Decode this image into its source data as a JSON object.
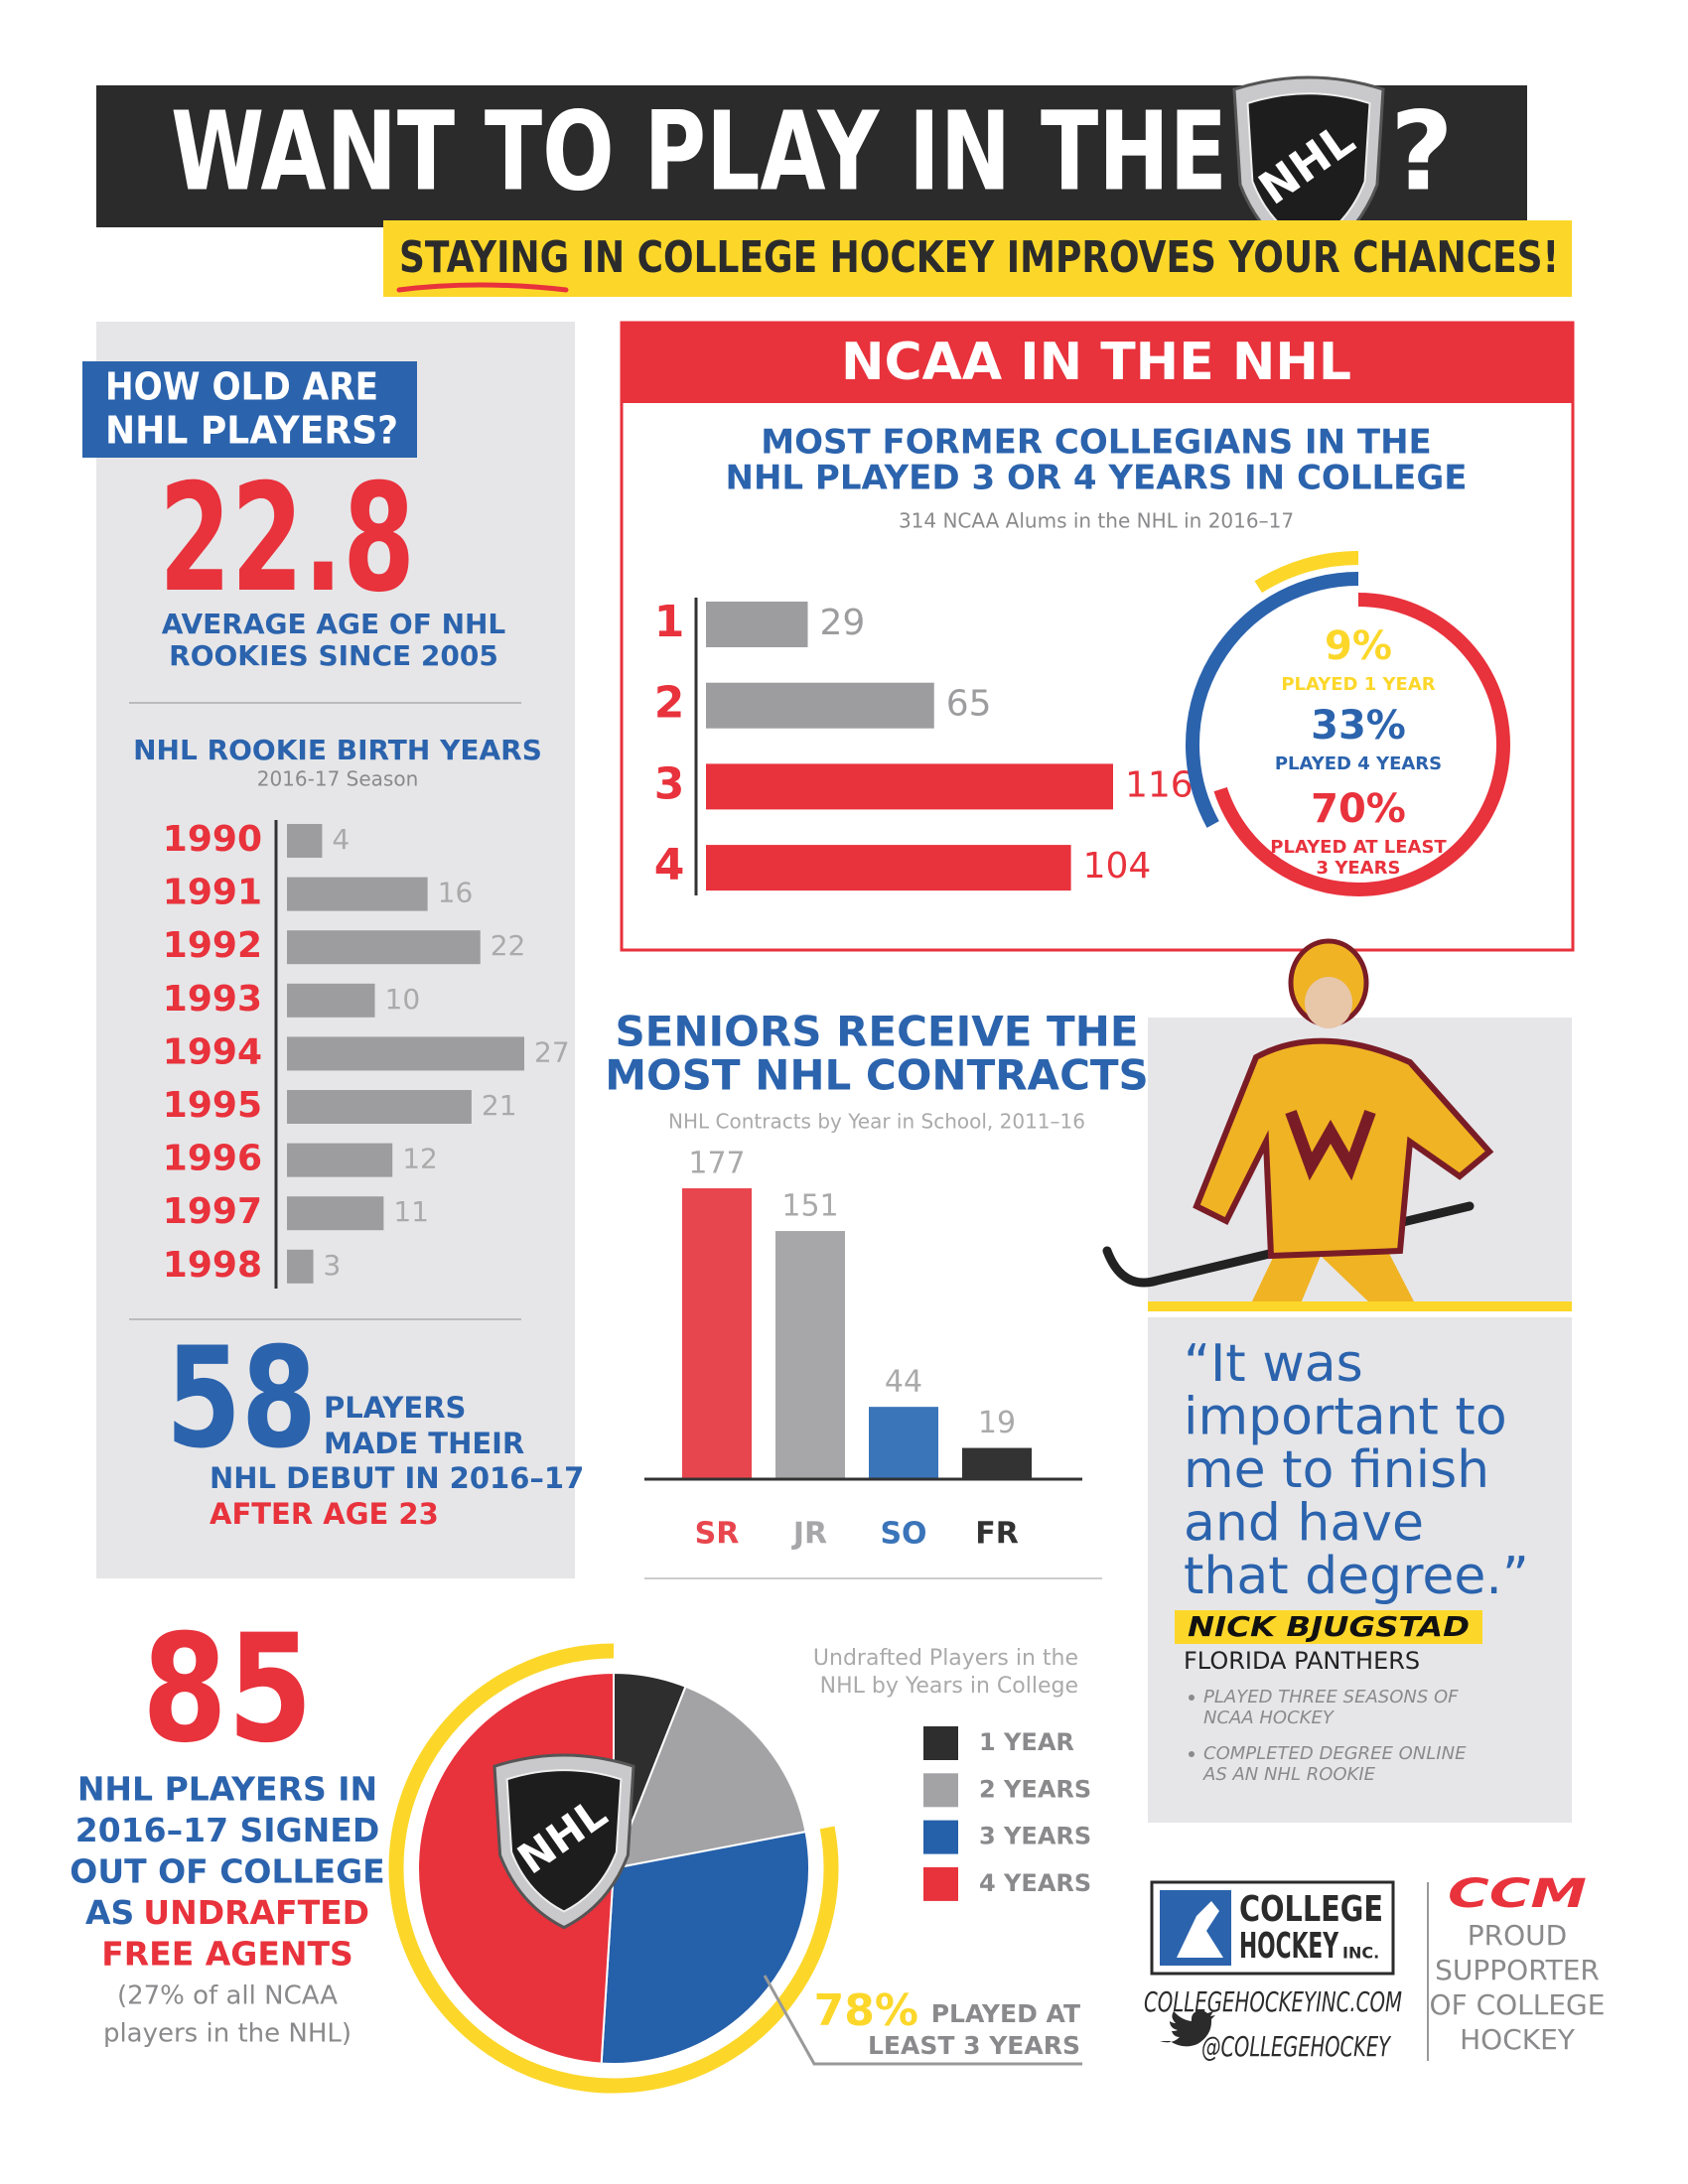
{
  "header": {
    "title": "WANT TO PLAY IN THE",
    "title_end": "?",
    "subtitle": "STAYING IN COLLEGE HOCKEY IMPROVES YOUR CHANCES!"
  },
  "nhl_logo": "NHL",
  "age": {
    "heading": [
      "HOW OLD ARE",
      "NHL PLAYERS?"
    ],
    "average": 22.8,
    "caption": [
      "AVERAGE AGE OF NHL",
      "ROOKIES SINCE 2005"
    ]
  },
  "debut": {
    "count": 58,
    "text": [
      "PLAYERS",
      "MADE THEIR",
      "NHL DEBUT IN 2016–17"
    ],
    "highlight": "AFTER AGE 23"
  },
  "undrafted": {
    "count": 85,
    "text": [
      "NHL PLAYERS IN",
      "2016–17 SIGNED",
      "OUT OF COLLEGE"
    ],
    "line_start": "AS",
    "highlight": [
      "UNDRAFTED",
      "FREE AGENTS"
    ],
    "note": [
      "(27% of all NCAA",
      "players in the NHL)"
    ]
  },
  "quote": {
    "text": [
      "“It was",
      "important to",
      "me to finish",
      "and have",
      "that degree.”"
    ],
    "name": "NICK BJUGSTAD",
    "team": "FLORIDA PANTHERS",
    "bullets": [
      [
        "PLAYED THREE SEASONS OF",
        "NCAA HOCKEY"
      ],
      [
        "COMPLETED DEGREE ONLINE",
        "AS AN NHL ROOKIE"
      ]
    ]
  },
  "footer": {
    "logo": [
      "COLLEGE",
      "HOCKEY",
      "INC."
    ],
    "website": "COLLEGEHOCKEYINC.COM",
    "twitter": "@COLLEGEHOCKEY",
    "sponsor": "CCM",
    "sponsor_text": [
      "PROUD",
      "SUPPORTER",
      "OF COLLEGE",
      "HOCKEY"
    ]
  },
  "chart_data": [
    {
      "type": "hbar",
      "title": "NHL ROOKIE BIRTH YEARS",
      "subtitle": "2016-17 Season",
      "categories": [
        "1990",
        "1991",
        "1992",
        "1993",
        "1994",
        "1995",
        "1996",
        "1997",
        "1998"
      ],
      "values": [
        4,
        16,
        22,
        10,
        27,
        21,
        12,
        11,
        3
      ],
      "color": "#9d9d9f",
      "label_color": "#e8323c"
    },
    {
      "type": "hbar",
      "section": "NCAA IN THE NHL",
      "title": [
        "MOST FORMER COLLEGIANS IN THE",
        "NHL PLAYED 3 OR 4 YEARS IN COLLEGE"
      ],
      "subtitle": "314 NCAA Alums in the NHL in 2016–17",
      "categories": [
        "1",
        "2",
        "3",
        "4"
      ],
      "values": [
        29,
        65,
        116,
        104
      ],
      "colors": [
        "#9d9d9f",
        "#9d9d9f",
        "#e8323c",
        "#e8323c"
      ],
      "label_color": "#e8323c"
    },
    {
      "type": "ring",
      "categories": [
        [
          "PLAYED 1 YEAR"
        ],
        [
          "PLAYED 4 YEARS"
        ],
        [
          "PLAYED AT LEAST",
          "3 YEARS"
        ]
      ],
      "values": [
        9,
        33,
        70
      ],
      "value_labels": [
        "9%",
        "33%",
        "70%"
      ],
      "colors": [
        "#fcd72a",
        "#2b63ad",
        "#e8323c"
      ]
    },
    {
      "type": "column",
      "title": [
        "SENIORS RECEIVE THE",
        "MOST NHL CONTRACTS"
      ],
      "subtitle": "NHL Contracts by Year in School, 2011–16",
      "categories": [
        "SR",
        "JR",
        "SO",
        "FR"
      ],
      "values": [
        177,
        151,
        44,
        19
      ],
      "colors": [
        "#e8464e",
        "#a7a7a9",
        "#3a74b9",
        "#333333"
      ]
    },
    {
      "type": "pie",
      "title": [
        "Undrafted Players in the",
        "NHL by Years in College"
      ],
      "categories": [
        "1 YEAR",
        "2 YEARS",
        "3 YEARS",
        "4 YEARS"
      ],
      "values": [
        6,
        16,
        29,
        49
      ],
      "colors": [
        "#2e2e2e",
        "#a3a3a5",
        "#2560aa",
        "#e8323c"
      ],
      "highlight": {
        "value": 78,
        "label": "78%",
        "text": [
          "PLAYED AT",
          "LEAST 3 YEARS"
        ],
        "color": "#fcd72a"
      }
    }
  ]
}
